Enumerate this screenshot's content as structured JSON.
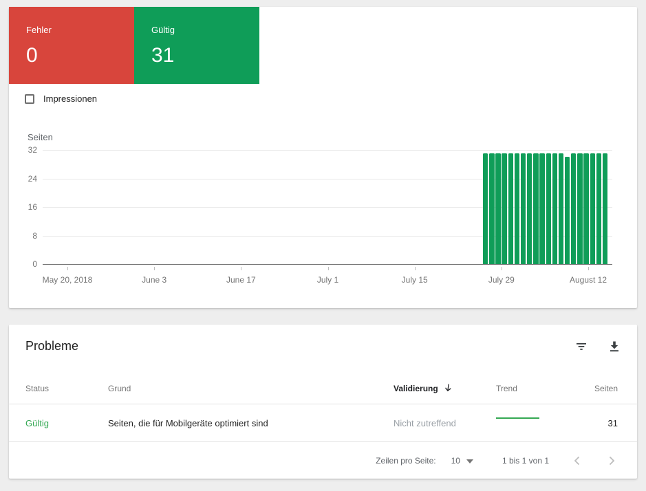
{
  "colors": {
    "error": "#d8453c",
    "valid": "#0f9d58",
    "bar": "#0f9d58",
    "status_valid_text": "#34a853",
    "trend_line": "#34a853",
    "icon_dark": "#3c4043",
    "chevron_disabled": "#bdbdbd"
  },
  "summary": {
    "chips": [
      {
        "label": "Fehler",
        "value": "0",
        "color": "#d8453c"
      },
      {
        "label": "Gültig",
        "value": "31",
        "color": "#0f9d58"
      }
    ],
    "impressions_label": "Impressionen"
  },
  "chart_data": {
    "type": "bar",
    "title": "Seiten",
    "xlabel": "",
    "ylabel": "Seiten",
    "ylim": [
      0,
      32
    ],
    "yticks": [
      0,
      8,
      16,
      24,
      32
    ],
    "grid": true,
    "legend": false,
    "xtick_labels": [
      "May 20, 2018",
      "June 3",
      "June 17",
      "July 1",
      "July 15",
      "July 29",
      "August 12"
    ],
    "x_range_shown": [
      "May 20, 2018",
      "August 14, 2018"
    ],
    "series": [
      {
        "name": "Gültig",
        "color": "#0f9d58",
        "x": [
          "Jul 26",
          "Jul 27",
          "Jul 28",
          "Jul 29",
          "Jul 30",
          "Jul 31",
          "Aug 1",
          "Aug 2",
          "Aug 3",
          "Aug 4",
          "Aug 5",
          "Aug 6",
          "Aug 7",
          "Aug 8",
          "Aug 9",
          "Aug 10",
          "Aug 11",
          "Aug 12",
          "Aug 13",
          "Aug 14"
        ],
        "values": [
          31,
          31,
          31,
          31,
          31,
          31,
          31,
          31,
          31,
          31,
          31,
          31,
          31,
          30,
          31,
          31,
          31,
          31,
          31,
          31
        ]
      }
    ]
  },
  "issues": {
    "title": "Probleme",
    "icons": [
      "filter-icon",
      "download-icon"
    ],
    "columns": {
      "status": "Status",
      "grund": "Grund",
      "validierung": "Validierung",
      "trend": "Trend",
      "seiten": "Seiten"
    },
    "sorted_column": "Validierung",
    "rows": [
      {
        "status": "Gültig",
        "grund": "Seiten, die für Mobilgeräte optimiert sind",
        "validierung": "Nicht zutreffend",
        "seiten": "31"
      }
    ],
    "pagination": {
      "rows_per_page_label": "Zeilen pro Seite:",
      "rows_per_page": "10",
      "range": "1 bis 1 von 1"
    }
  }
}
